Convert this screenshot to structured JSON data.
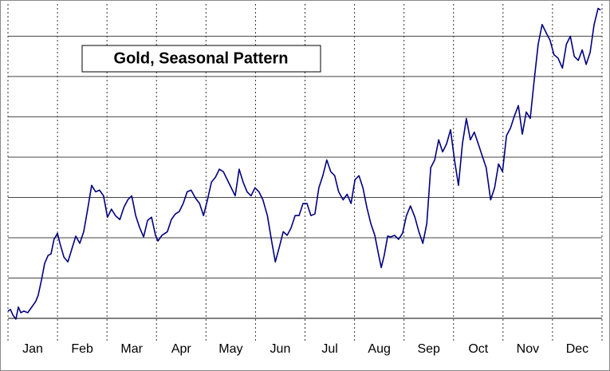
{
  "chart_data": {
    "type": "line",
    "title": "Gold, Seasonal Pattern",
    "categories": [
      "Jan",
      "Feb",
      "Mar",
      "Apr",
      "May",
      "Jun",
      "Jul",
      "Aug",
      "Sep",
      "Oct",
      "Nov",
      "Dec"
    ],
    "xlim": [
      0,
      12
    ],
    "xticks": [
      0,
      1,
      2,
      3,
      4,
      5,
      6,
      7,
      8,
      9,
      10,
      11,
      12
    ],
    "ylim": [
      0,
      7.8
    ],
    "yticks": [
      0,
      1,
      2,
      3,
      4,
      5,
      6,
      7
    ],
    "grid": true,
    "series": [
      {
        "color": "#000080",
        "x": [
          0,
          0.05,
          0.1,
          0.16,
          0.21,
          0.26,
          0.32,
          0.4,
          0.48,
          0.56,
          0.61,
          0.68,
          0.74,
          0.81,
          0.87,
          0.93,
          1.0,
          1.05,
          1.13,
          1.21,
          1.29,
          1.37,
          1.45,
          1.53,
          1.61,
          1.69,
          1.77,
          1.85,
          1.93,
          2.01,
          2.09,
          2.17,
          2.26,
          2.34,
          2.42,
          2.5,
          2.58,
          2.66,
          2.74,
          2.82,
          2.9,
          2.98,
          3.03,
          3.11,
          3.22,
          3.3,
          3.38,
          3.46,
          3.54,
          3.62,
          3.7,
          3.79,
          3.87,
          3.95,
          4.03,
          4.11,
          4.19,
          4.27,
          4.35,
          4.43,
          4.51,
          4.59,
          4.67,
          4.75,
          4.83,
          4.91,
          4.99,
          5.07,
          5.15,
          5.24,
          5.32,
          5.4,
          5.48,
          5.56,
          5.64,
          5.72,
          5.8,
          5.88,
          5.96,
          6.04,
          6.12,
          6.2,
          6.28,
          6.36,
          6.44,
          6.52,
          6.6,
          6.68,
          6.77,
          6.85,
          6.93,
          7.01,
          7.09,
          7.17,
          7.25,
          7.33,
          7.41,
          7.49,
          7.54,
          7.6,
          7.67,
          7.73,
          7.81,
          7.89,
          7.97,
          8.05,
          8.13,
          8.22,
          8.3,
          8.38,
          8.46,
          8.54,
          8.62,
          8.7,
          8.78,
          8.86,
          8.94,
          9.02,
          9.1,
          9.18,
          9.26,
          9.34,
          9.42,
          9.5,
          9.58,
          9.66,
          9.75,
          9.83,
          9.91,
          9.99,
          10.07,
          10.15,
          10.23,
          10.31,
          10.39,
          10.47,
          10.55,
          10.63,
          10.71,
          10.79,
          10.87,
          10.95,
          11.03,
          11.11,
          11.2,
          11.28,
          11.36,
          11.44,
          11.52,
          11.6,
          11.68,
          11.76,
          11.84,
          11.92,
          11.97
        ],
        "values": [
          0.18,
          0.22,
          0.08,
          -0.02,
          0.28,
          0.14,
          0.18,
          0.14,
          0.28,
          0.42,
          0.57,
          0.97,
          1.36,
          1.56,
          1.6,
          1.96,
          2.11,
          1.86,
          1.52,
          1.4,
          1.72,
          2.04,
          1.86,
          2.15,
          2.71,
          3.3,
          3.14,
          3.18,
          3.04,
          2.51,
          2.71,
          2.55,
          2.45,
          2.75,
          2.94,
          3.04,
          2.55,
          2.25,
          2.02,
          2.43,
          2.51,
          2.06,
          1.92,
          2.06,
          2.15,
          2.45,
          2.59,
          2.65,
          2.85,
          3.14,
          3.18,
          2.98,
          2.85,
          2.55,
          2.94,
          3.38,
          3.5,
          3.7,
          3.64,
          3.44,
          3.24,
          3.04,
          3.7,
          3.38,
          3.14,
          3.04,
          3.24,
          3.14,
          2.94,
          2.55,
          1.96,
          1.4,
          1.76,
          2.15,
          2.06,
          2.25,
          2.55,
          2.55,
          2.85,
          2.85,
          2.55,
          2.59,
          3.24,
          3.54,
          3.93,
          3.64,
          3.54,
          3.14,
          2.94,
          3.08,
          2.85,
          3.44,
          3.54,
          3.24,
          2.75,
          2.35,
          2.06,
          1.56,
          1.26,
          1.56,
          2.04,
          2.02,
          2.06,
          1.96,
          2.11,
          2.55,
          2.79,
          2.51,
          2.15,
          1.86,
          2.35,
          3.74,
          3.93,
          4.43,
          4.13,
          4.33,
          4.68,
          3.93,
          3.3,
          4.33,
          4.96,
          4.43,
          4.62,
          4.33,
          4.03,
          3.74,
          2.94,
          3.24,
          3.83,
          3.64,
          4.53,
          4.72,
          5.02,
          5.28,
          4.57,
          5.12,
          4.96,
          5.91,
          6.8,
          7.29,
          7.09,
          6.9,
          6.54,
          6.46,
          6.21,
          6.8,
          7.0,
          6.5,
          6.4,
          6.66,
          6.3,
          6.6,
          7.29,
          7.69,
          7.65
        ]
      }
    ]
  }
}
